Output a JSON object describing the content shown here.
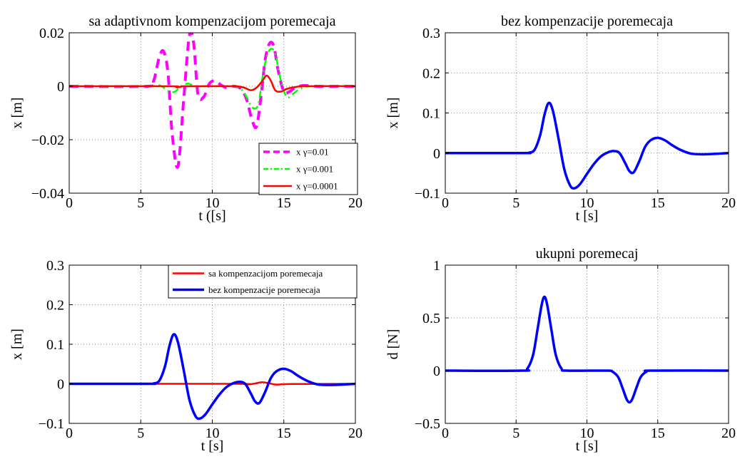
{
  "chart_data": [
    {
      "id": "tl",
      "type": "line",
      "title": "sa adaptivnom kompenzacijom poremecaja",
      "xlabel": "t ([s]",
      "ylabel": "x [m]",
      "xlim": [
        0,
        20
      ],
      "ylim": [
        -0.04,
        0.02
      ],
      "xticks": [
        0,
        5,
        10,
        15,
        20
      ],
      "xtick_labels": [
        "0",
        "5",
        "10",
        "15",
        "20"
      ],
      "yticks": [
        -0.04,
        -0.02,
        0,
        0.02
      ],
      "ytick_labels": [
        "−0.04",
        "−0.02",
        "0",
        "0.02"
      ],
      "grid": true,
      "legend": "bottom-right",
      "series": [
        {
          "name": "x γ=0.01",
          "color": "#ff00ff",
          "style": "dashed",
          "x": [
            0,
            5.5,
            5.9,
            6.3,
            6.6,
            6.9,
            7.2,
            7.6,
            8.0,
            8.4,
            8.7,
            9.0,
            9.4,
            9.8,
            10.2,
            10.6,
            11.0,
            11.5,
            12.0,
            12.4,
            12.8,
            13.1,
            13.4,
            13.7,
            14.0,
            14.3,
            14.6,
            15.0,
            15.4,
            15.8,
            16.4,
            17.2,
            20
          ],
          "y": [
            0,
            0,
            0.002,
            0.011,
            0.013,
            0.005,
            -0.018,
            -0.03,
            -0.005,
            0.019,
            0.016,
            -0.003,
            -0.004,
            0.001,
            0.002,
            0.0005,
            -0.0005,
            0,
            -0.001,
            -0.005,
            -0.013,
            -0.015,
            -0.004,
            0.01,
            0.016,
            0.015,
            0.006,
            -0.002,
            -0.002,
            -0.0005,
            0.0003,
            0,
            0
          ]
        },
        {
          "name": "x γ=0.001",
          "color": "#00ff00",
          "style": "dashdot",
          "x": [
            0,
            5.8,
            6.2,
            6.6,
            7.0,
            7.4,
            7.8,
            8.3,
            8.8,
            9.5,
            10.5,
            11.5,
            12.0,
            12.4,
            12.8,
            13.2,
            13.5,
            13.8,
            14.1,
            14.4,
            14.8,
            15.2,
            15.6,
            16.2,
            17.0,
            20
          ],
          "y": [
            0,
            0,
            0.0005,
            -0.0005,
            -0.002,
            -0.002,
            0,
            0.001,
            0,
            0,
            0,
            0,
            -0.001,
            -0.004,
            -0.008,
            -0.007,
            0.003,
            0.011,
            0.014,
            0.012,
            0.002,
            -0.004,
            -0.003,
            -0.0008,
            0,
            0
          ]
        },
        {
          "name": "x γ=0.0001",
          "color": "#ff0000",
          "style": "solid",
          "x": [
            0,
            7.0,
            7.5,
            8.0,
            8.5,
            11.5,
            12.2,
            12.7,
            13.1,
            13.5,
            13.8,
            14.1,
            14.4,
            14.8,
            15.2,
            15.8,
            16.5,
            20
          ],
          "y": [
            0,
            0,
            -0.0004,
            0,
            0,
            0,
            -0.0005,
            -0.0015,
            -0.0005,
            0.002,
            0.004,
            0.002,
            -0.0015,
            -0.002,
            -0.001,
            -0.0003,
            0,
            0
          ]
        }
      ]
    },
    {
      "id": "tr",
      "type": "line",
      "title": "bez kompenzacije poremecaja",
      "xlabel": "t [s]",
      "ylabel": "x [m]",
      "xlim": [
        0,
        20
      ],
      "ylim": [
        -0.1,
        0.3
      ],
      "xticks": [
        0,
        5,
        10,
        15,
        20
      ],
      "xtick_labels": [
        "0",
        "5",
        "10",
        "15",
        "20"
      ],
      "yticks": [
        -0.1,
        0,
        0.1,
        0.2,
        0.3
      ],
      "ytick_labels": [
        "−0.1",
        "0",
        "0.1",
        "0.2",
        "0.3"
      ],
      "grid": true,
      "series": [
        {
          "color": "#0000ff",
          "style": "solid",
          "x": [
            0,
            5.5,
            5.9,
            6.3,
            6.7,
            7.0,
            7.3,
            7.6,
            8.0,
            8.4,
            8.8,
            9.1,
            9.5,
            10.0,
            10.5,
            11.0,
            11.5,
            11.9,
            12.3,
            12.7,
            13.0,
            13.3,
            13.7,
            14.1,
            14.5,
            15.0,
            15.5,
            16.0,
            16.6,
            17.3,
            18.0,
            19.0,
            20
          ],
          "y": [
            0,
            0,
            0.001,
            0.008,
            0.045,
            0.095,
            0.125,
            0.105,
            0.035,
            -0.04,
            -0.08,
            -0.088,
            -0.078,
            -0.052,
            -0.027,
            -0.008,
            0.002,
            0.005,
            0.0,
            -0.025,
            -0.045,
            -0.048,
            -0.02,
            0.015,
            0.032,
            0.038,
            0.032,
            0.02,
            0.008,
            -0.001,
            -0.003,
            -0.002,
            0
          ]
        }
      ]
    },
    {
      "id": "bl",
      "type": "line",
      "xlabel": "t [s]",
      "ylabel": "x [m]",
      "xlim": [
        0,
        20
      ],
      "ylim": [
        -0.1,
        0.3
      ],
      "xticks": [
        0,
        5,
        10,
        15,
        20
      ],
      "xtick_labels": [
        "0",
        "5",
        "10",
        "15",
        "20"
      ],
      "yticks": [
        -0.1,
        0,
        0.1,
        0.2,
        0.3
      ],
      "ytick_labels": [
        "−0.1",
        "0",
        "0.1",
        "0.2",
        "0.3"
      ],
      "grid": true,
      "legend": "top-right",
      "series": [
        {
          "name": "sa kompenzacijom poremecaja",
          "color": "#ff0000",
          "style": "solid",
          "x": [
            0,
            11.5,
            12.5,
            13.0,
            13.5,
            14.0,
            14.5,
            15.5,
            20
          ],
          "y": [
            0,
            0,
            -0.0015,
            0.001,
            0.004,
            0.001,
            -0.002,
            -0.0005,
            0
          ]
        },
        {
          "name": "bez kompenzacije poremecaja",
          "color": "#0000ff",
          "style": "solid",
          "x": [
            0,
            5.5,
            5.9,
            6.3,
            6.7,
            7.0,
            7.3,
            7.6,
            8.0,
            8.4,
            8.8,
            9.1,
            9.5,
            10.0,
            10.5,
            11.0,
            11.5,
            11.9,
            12.3,
            12.7,
            13.0,
            13.3,
            13.7,
            14.1,
            14.5,
            15.0,
            15.5,
            16.0,
            16.6,
            17.3,
            18.0,
            19.0,
            20
          ],
          "y": [
            0,
            0,
            0.001,
            0.008,
            0.045,
            0.095,
            0.125,
            0.105,
            0.035,
            -0.04,
            -0.08,
            -0.088,
            -0.078,
            -0.052,
            -0.027,
            -0.008,
            0.002,
            0.005,
            0.0,
            -0.025,
            -0.045,
            -0.048,
            -0.02,
            0.015,
            0.032,
            0.038,
            0.032,
            0.02,
            0.008,
            -0.001,
            -0.003,
            -0.002,
            0
          ]
        }
      ]
    },
    {
      "id": "br",
      "type": "line",
      "title": "ukupni poremecaj",
      "xlabel": "t [s]",
      "ylabel": "d [N]",
      "xlim": [
        0,
        20
      ],
      "ylim": [
        -0.5,
        1
      ],
      "xticks": [
        0,
        5,
        10,
        15,
        20
      ],
      "xtick_labels": [
        "0",
        "5",
        "10",
        "15",
        "20"
      ],
      "yticks": [
        -0.5,
        0,
        0.5,
        1
      ],
      "ytick_labels": [
        "−0.5",
        "0",
        "0.5",
        "1"
      ],
      "grid": true,
      "series": [
        {
          "color": "#0000ff",
          "style": "solid",
          "x": [
            0,
            5.4,
            5.8,
            6.2,
            6.5,
            6.8,
            7.0,
            7.2,
            7.5,
            7.8,
            8.2,
            8.6,
            11.4,
            11.8,
            12.2,
            12.5,
            12.8,
            13.0,
            13.2,
            13.5,
            13.8,
            14.2,
            14.6,
            20
          ],
          "y": [
            0,
            0,
            0.02,
            0.15,
            0.38,
            0.62,
            0.7,
            0.62,
            0.38,
            0.15,
            0.02,
            0,
            0,
            -0.01,
            -0.06,
            -0.16,
            -0.27,
            -0.3,
            -0.27,
            -0.16,
            -0.06,
            -0.01,
            0,
            0
          ]
        }
      ]
    }
  ]
}
